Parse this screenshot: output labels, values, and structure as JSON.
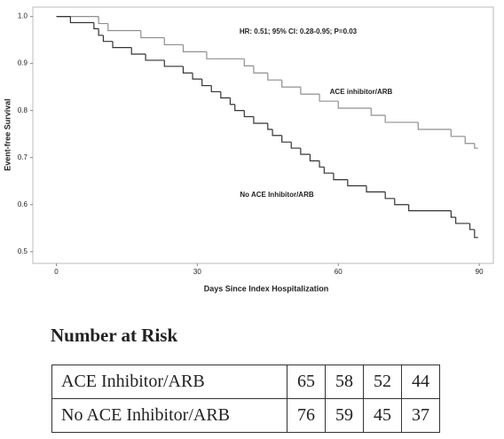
{
  "chart_data": {
    "type": "step",
    "annotation": "HR: 0.51; 95% CI: 0.28-0.95; P=0.03",
    "x_label": "Days Since Index Hospitalization",
    "y_label": "Event-free Survival",
    "xlim": [
      -5,
      93
    ],
    "ylim": [
      0.475,
      1.02
    ],
    "xticks": [
      0,
      30,
      60,
      90
    ],
    "yticks": [
      {
        "value": 1,
        "label": "1.0"
      },
      0.9,
      0.8,
      0.7,
      0.6,
      0.5
    ],
    "series": [
      {
        "name": "ACE inhibitor/ARB",
        "color": "#8f8f8f",
        "x": [
          0,
          9,
          11,
          18,
          23,
          27,
          32,
          40,
          42,
          45,
          48,
          52,
          56,
          60,
          67,
          70,
          77,
          84,
          87,
          89
        ],
        "values": [
          1,
          0.985,
          0.97,
          0.955,
          0.94,
          0.925,
          0.91,
          0.895,
          0.88,
          0.865,
          0.85,
          0.835,
          0.82,
          0.805,
          0.79,
          0.775,
          0.76,
          0.745,
          0.73,
          0.72
        ]
      },
      {
        "name": "No ACE Inhibitor/ARB",
        "color": "#333333",
        "x": [
          0,
          3,
          8,
          9,
          10,
          12,
          16,
          19,
          23,
          27,
          29,
          31,
          33,
          35,
          37,
          38,
          40,
          42,
          45,
          46,
          48,
          50,
          52,
          54,
          56,
          57,
          59,
          62,
          66,
          70,
          72,
          75,
          84,
          85,
          88,
          89
        ],
        "values": [
          1,
          0.987,
          0.974,
          0.96,
          0.947,
          0.934,
          0.92,
          0.907,
          0.894,
          0.88,
          0.867,
          0.853,
          0.84,
          0.827,
          0.813,
          0.8,
          0.787,
          0.773,
          0.76,
          0.747,
          0.733,
          0.72,
          0.707,
          0.693,
          0.68,
          0.667,
          0.653,
          0.64,
          0.627,
          0.613,
          0.6,
          0.587,
          0.573,
          0.56,
          0.547,
          0.53
        ]
      }
    ]
  },
  "risk_table": {
    "title": "Number at Risk",
    "rows": [
      {
        "label": "ACE Inhibitor/ARB",
        "counts": [
          65,
          58,
          52,
          44
        ]
      },
      {
        "label": "No ACE Inhibitor/ARB",
        "counts": [
          76,
          59,
          45,
          37
        ]
      }
    ]
  }
}
